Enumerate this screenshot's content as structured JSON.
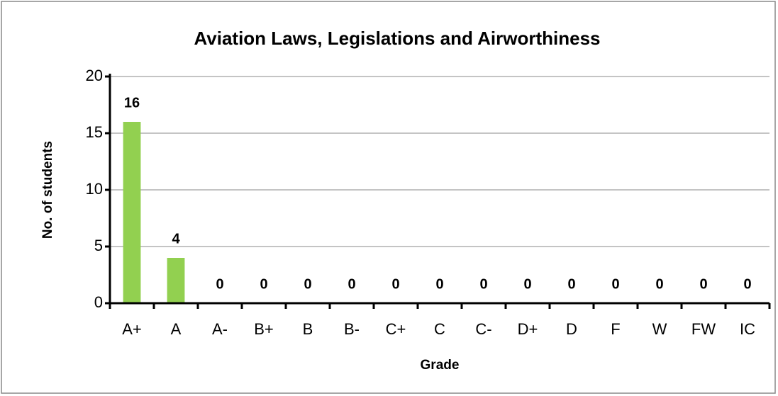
{
  "chart_data": {
    "type": "bar",
    "title": "Aviation Laws, Legislations and Airworthiness",
    "x_label": "Grade",
    "y_label": "No. of students",
    "categories": [
      "A+",
      "A",
      "A-",
      "B+",
      "B",
      "B-",
      "C+",
      "C",
      "C-",
      "D+",
      "D",
      "F",
      "W",
      "FW",
      "IC"
    ],
    "values": [
      16,
      4,
      0,
      0,
      0,
      0,
      0,
      0,
      0,
      0,
      0,
      0,
      0,
      0,
      0
    ],
    "color": "#92d050",
    "ylim": [
      0,
      20
    ],
    "yticks": [
      0,
      5,
      10,
      15,
      20
    ],
    "grid": true
  }
}
